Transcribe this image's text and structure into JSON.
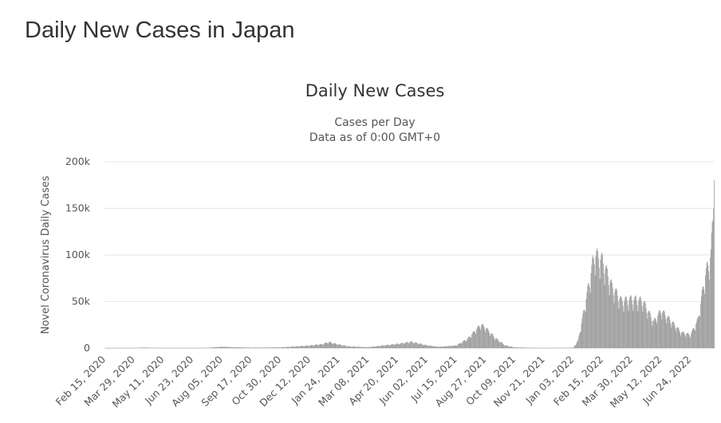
{
  "page": {
    "heading": "Daily New Cases in Japan"
  },
  "chart_data": {
    "type": "bar",
    "title": "Daily New Cases",
    "subtitle_lines": [
      "Cases per Day",
      "Data as of 0:00 GMT+0"
    ],
    "xlabel": "",
    "ylabel": "Novel Coronavirus Daily Cases",
    "ylim": [
      0,
      200000
    ],
    "y_ticks": [
      0,
      50000,
      100000,
      150000,
      200000
    ],
    "y_tick_labels": [
      "0",
      "50k",
      "100k",
      "150k",
      "200k"
    ],
    "x_tick_labels": [
      "Feb 15, 2020",
      "Mar 29, 2020",
      "May 11, 2020",
      "Jun 23, 2020",
      "Aug 05, 2020",
      "Sep 17, 2020",
      "Oct 30, 2020",
      "Dec 12, 2020",
      "Jan 24, 2021",
      "Mar 08, 2021",
      "Apr 20, 2021",
      "Jun 02, 2021",
      "Jul 15, 2021",
      "Aug 27, 2021",
      "Oct 09, 2021",
      "Nov 21, 2021",
      "Jan 03, 2022",
      "Feb 15, 2022",
      "Mar 30, 2022",
      "May 12, 2022",
      "Jun 24, 2022"
    ],
    "grid": true,
    "legend": "none",
    "bar_color": "#999999",
    "start_date": "2020-02-15",
    "end_date": "2022-07-29",
    "key_points": [
      [
        "2020-02-15",
        0
      ],
      [
        "2020-03-29",
        200
      ],
      [
        "2020-04-12",
        650
      ],
      [
        "2020-05-11",
        50
      ],
      [
        "2020-06-23",
        60
      ],
      [
        "2020-07-15",
        400
      ],
      [
        "2020-08-05",
        1500
      ],
      [
        "2020-08-20",
        1000
      ],
      [
        "2020-09-17",
        550
      ],
      [
        "2020-10-30",
        800
      ],
      [
        "2020-12-12",
        2800
      ],
      [
        "2020-12-31",
        4300
      ],
      [
        "2021-01-09",
        6500
      ],
      [
        "2021-01-24",
        3800
      ],
      [
        "2021-02-08",
        1800
      ],
      [
        "2021-03-08",
        1000
      ],
      [
        "2021-04-20",
        4500
      ],
      [
        "2021-05-10",
        6700
      ],
      [
        "2021-06-02",
        3000
      ],
      [
        "2021-06-20",
        1500
      ],
      [
        "2021-07-15",
        2800
      ],
      [
        "2021-08-01",
        10000
      ],
      [
        "2021-08-20",
        25000
      ],
      [
        "2021-08-27",
        22000
      ],
      [
        "2021-09-10",
        11000
      ],
      [
        "2021-09-25",
        3000
      ],
      [
        "2021-10-09",
        800
      ],
      [
        "2021-11-21",
        150
      ],
      [
        "2022-01-03",
        400
      ],
      [
        "2022-01-10",
        8000
      ],
      [
        "2022-01-20",
        45000
      ],
      [
        "2022-02-03",
        100000
      ],
      [
        "2022-02-15",
        93000
      ],
      [
        "2022-03-01",
        65000
      ],
      [
        "2022-03-15",
        50000
      ],
      [
        "2022-03-30",
        52000
      ],
      [
        "2022-04-15",
        50000
      ],
      [
        "2022-05-01",
        28000
      ],
      [
        "2022-05-12",
        40000
      ],
      [
        "2022-05-25",
        30000
      ],
      [
        "2022-06-10",
        17000
      ],
      [
        "2022-06-24",
        14000
      ],
      [
        "2022-07-05",
        30000
      ],
      [
        "2022-07-15",
        75000
      ],
      [
        "2022-07-24",
        100000
      ],
      [
        "2022-07-28",
        150000
      ],
      [
        "2022-07-29",
        180000
      ]
    ]
  }
}
